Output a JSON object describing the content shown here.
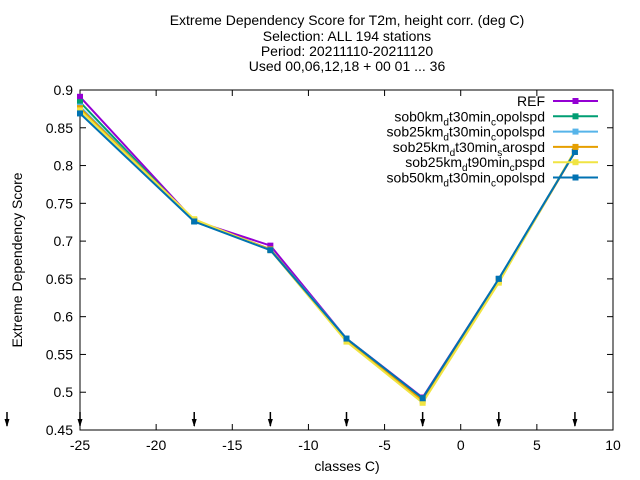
{
  "chart_data": {
    "type": "line",
    "title_lines": [
      "Extreme Dependency Score  for T2m, height corr. (deg C)",
      "Selection: ALL    194 stations",
      "Period: 20211110-20211120",
      "Used 00,06,12,18 + 00 01 ... 36"
    ],
    "xlabel": "classes C)",
    "ylabel": "Extreme Dependency Score",
    "xlim": [
      -25,
      10
    ],
    "ylim": [
      0.45,
      0.9
    ],
    "xticks": [
      -25,
      -20,
      -15,
      -10,
      -5,
      0,
      5,
      10
    ],
    "xtick_labels": [
      "-25",
      "-20",
      "-15",
      "-10",
      "-5",
      "0",
      "5",
      "10"
    ],
    "yticks": [
      0.45,
      0.5,
      0.55,
      0.6,
      0.65,
      0.7,
      0.75,
      0.8,
      0.85,
      0.9
    ],
    "ytick_labels": [
      "0.45",
      "0.5",
      "0.55",
      "0.6",
      "0.65",
      "0.7",
      "0.75",
      "0.8",
      "0.85",
      "0.9"
    ],
    "grid": false,
    "legend_position": "top-right",
    "arrow_markers_x": [
      -25,
      -17.5,
      -12.5,
      -7.5,
      -2.5,
      2.5,
      7.5
    ],
    "series": [
      {
        "name": "REF",
        "legend": {
          "main": "REF",
          "parts": []
        },
        "color": "#9400d3",
        "x": [
          -25,
          -17.5,
          -12.5,
          -7.5,
          -2.5,
          2.5,
          7.5
        ],
        "y": [
          0.891,
          0.727,
          0.694,
          0.571,
          0.493,
          0.65,
          0.818
        ]
      },
      {
        "name": "sob0kmdt30mincopolspd",
        "legend": {
          "main": "sob0km",
          "parts": [
            {
              "t": "d",
              "s": "sub"
            },
            {
              "t": "t30min",
              "s": ""
            },
            {
              "t": "c",
              "s": "sub"
            },
            {
              "t": "opolspd",
              "s": ""
            }
          ]
        },
        "color": "#009e73",
        "x": [
          -25,
          -17.5,
          -12.5,
          -7.5,
          -2.5,
          2.5,
          7.5
        ],
        "y": [
          0.884,
          0.726,
          0.689,
          0.571,
          0.492,
          0.65,
          0.818
        ]
      },
      {
        "name": "sob25kmdt30mincopolspd",
        "legend": {
          "main": "sob25km",
          "parts": [
            {
              "t": "d",
              "s": "sub"
            },
            {
              "t": "t30min",
              "s": ""
            },
            {
              "t": "c",
              "s": "sub"
            },
            {
              "t": "opolspd",
              "s": ""
            }
          ]
        },
        "color": "#56b4e9",
        "x": [
          -25,
          -17.5,
          -12.5,
          -7.5,
          -2.5,
          2.5,
          7.5
        ],
        "y": [
          0.878,
          0.727,
          0.689,
          0.571,
          0.491,
          0.65,
          0.818
        ]
      },
      {
        "name": "sob25kmdt30minsarospd",
        "legend": {
          "main": "sob25km",
          "parts": [
            {
              "t": "d",
              "s": "sub"
            },
            {
              "t": "t30min",
              "s": ""
            },
            {
              "t": "s",
              "s": "sub"
            },
            {
              "t": "arospd",
              "s": ""
            }
          ]
        },
        "color": "#e69f00",
        "x": [
          -25,
          -17.5,
          -12.5,
          -7.5,
          -2.5,
          2.5,
          7.5
        ],
        "y": [
          0.876,
          0.728,
          0.689,
          0.569,
          0.489,
          0.647,
          0.818
        ]
      },
      {
        "name": "sob25kmdt90mincpspd",
        "legend": {
          "main": "sob25km",
          "parts": [
            {
              "t": "d",
              "s": "sub"
            },
            {
              "t": "t90min",
              "s": ""
            },
            {
              "t": "c",
              "s": "sub"
            },
            {
              "t": "pspd",
              "s": ""
            }
          ]
        },
        "color": "#f0e442",
        "x": [
          -25,
          -17.5,
          -12.5,
          -7.5,
          -2.5,
          2.5,
          7.5
        ],
        "y": [
          0.873,
          0.729,
          0.688,
          0.567,
          0.486,
          0.645,
          0.82
        ]
      },
      {
        "name": "sob50kmdt30mincopolspd",
        "legend": {
          "main": "sob50km",
          "parts": [
            {
              "t": "d",
              "s": "sub"
            },
            {
              "t": "t30min",
              "s": ""
            },
            {
              "t": "c",
              "s": "sub"
            },
            {
              "t": "opolspd",
              "s": ""
            }
          ]
        },
        "color": "#0072b2",
        "x": [
          -25,
          -17.5,
          -12.5,
          -7.5,
          -2.5,
          2.5,
          7.5
        ],
        "y": [
          0.869,
          0.726,
          0.688,
          0.571,
          0.492,
          0.65,
          0.818
        ]
      }
    ]
  }
}
